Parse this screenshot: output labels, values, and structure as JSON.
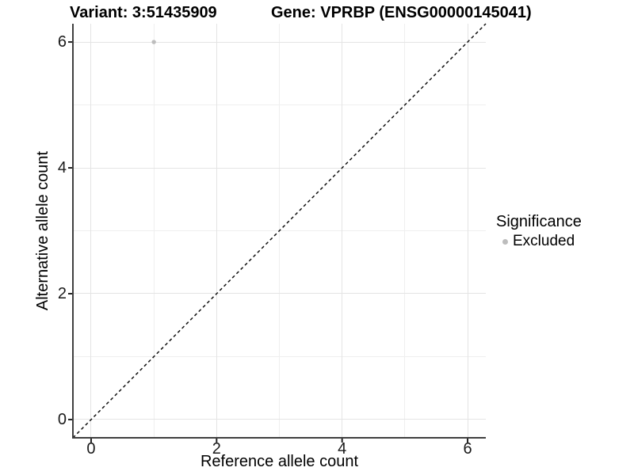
{
  "chart_data": {
    "type": "scatter",
    "title_left": "Variant: 3:51435909",
    "title_right": "Gene: VPRBP (ENSG00000145041)",
    "xlabel": "Reference allele count",
    "ylabel": "Alternative allele count",
    "xlim": [
      -0.29,
      6.29
    ],
    "ylim": [
      -0.29,
      6.29
    ],
    "x_ticks": [
      0,
      2,
      4,
      6
    ],
    "y_ticks": [
      0,
      2,
      4,
      6
    ],
    "grid": "on",
    "grid_major": [
      0,
      2,
      4,
      6
    ],
    "grid_minor": [
      1,
      3,
      5
    ],
    "legend_position": "right",
    "series": [
      {
        "name": "Excluded",
        "color": "#bdbdbd",
        "point_radius": 2.7,
        "points": [
          {
            "x": 1,
            "y": 6
          }
        ]
      }
    ],
    "reference_line": {
      "kind": "identity y=x",
      "style": "dashed",
      "color": "#111111",
      "from": [
        -0.29,
        -0.29
      ],
      "to": [
        6.29,
        6.29
      ]
    }
  },
  "legend": {
    "title": "Significance",
    "entries": [
      {
        "label": "Excluded",
        "color": "#bdbdbd"
      }
    ]
  },
  "colors": {
    "background": "#ffffff",
    "grid_major": "#e4e4e4",
    "grid_minor": "#efefef",
    "axis_line": "#404040",
    "tick_mark": "#222222",
    "tick_text": "#1a1a1a",
    "point": "#bdbdbd"
  }
}
